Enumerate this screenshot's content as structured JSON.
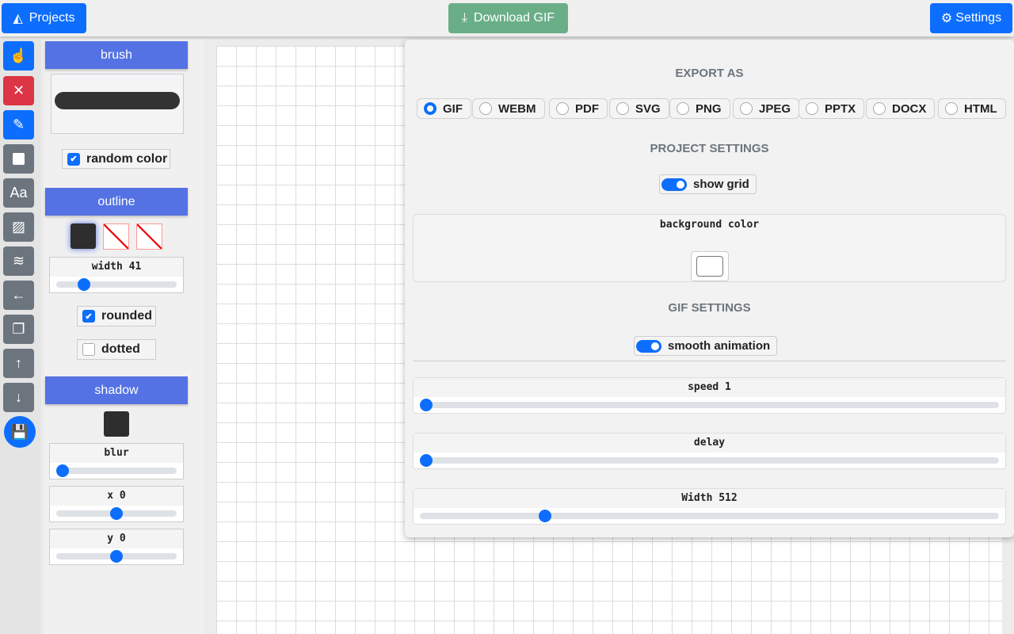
{
  "header": {
    "projects_label": "Projects",
    "download_label": "Download GIF",
    "settings_label": "Settings",
    "colors": {
      "primary": "#0d6efd",
      "success": "#6aae88"
    }
  },
  "toolbar": {
    "tools": [
      {
        "icon": "pointer-hand-icon"
      },
      {
        "icon": "close-icon",
        "color": "#dc3545"
      },
      {
        "icon": "brush-icon",
        "color": "#0d6efd"
      },
      {
        "icon": "square-icon"
      },
      {
        "icon": "text-icon",
        "label": "Aa"
      },
      {
        "icon": "image-icon"
      },
      {
        "icon": "layers-icon"
      },
      {
        "icon": "arrow-left-icon"
      },
      {
        "icon": "copy-icon"
      },
      {
        "icon": "arrow-up-icon"
      },
      {
        "icon": "arrow-down-icon"
      },
      {
        "icon": "save-icon"
      }
    ]
  },
  "panel": {
    "brush_title": "brush",
    "random_color": {
      "label": "random color",
      "checked": true
    },
    "outline_title": "outline",
    "outline_width": {
      "label": "width 41",
      "value": 41,
      "percent": 20
    },
    "rounded": {
      "label": "rounded",
      "checked": true
    },
    "dotted": {
      "label": "dotted",
      "checked": false
    },
    "shadow_title": "shadow",
    "blur": {
      "label": "blur",
      "percent": 0
    },
    "x": {
      "label": "x 0",
      "percent": 50
    },
    "y": {
      "label": "y 0",
      "percent": 50
    }
  },
  "settings": {
    "export_title": "EXPORT AS",
    "formats": [
      "GIF",
      "WEBM",
      "PDF",
      "SVG",
      "PNG",
      "JPEG",
      "PPTX",
      "DOCX",
      "HTML"
    ],
    "selected_format": "GIF",
    "project_title": "PROJECT SETTINGS",
    "show_grid": {
      "label": "show grid",
      "on": true
    },
    "background_color_label": "background color",
    "background_color": "#ffffff",
    "gif_title": "GIF SETTINGS",
    "smooth_animation": {
      "label": "smooth animation",
      "on": true
    },
    "speed": {
      "label": "speed 1",
      "percent": 0
    },
    "delay": {
      "label": "delay",
      "percent": 0
    },
    "width": {
      "label": "Width 512",
      "percent": 21
    }
  }
}
